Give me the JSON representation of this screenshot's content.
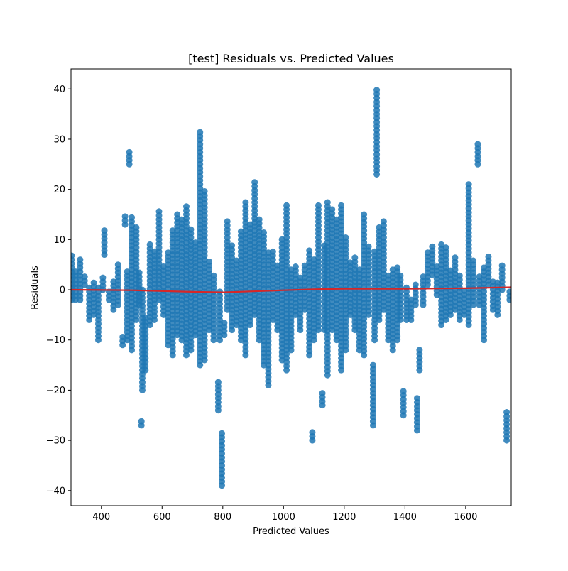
{
  "chart_data": {
    "type": "scatter",
    "title": "[test] Residuals vs. Predicted Values",
    "xlabel": "Predicted Values",
    "ylabel": "Residuals",
    "xlim": [
      300,
      1750
    ],
    "ylim": [
      -43,
      44
    ],
    "xticks": [
      400,
      600,
      800,
      1000,
      1200,
      1400,
      1600
    ],
    "xtick_labels": [
      "400",
      "600",
      "800",
      "1000",
      "1200",
      "1400",
      "1600"
    ],
    "yticks": [
      -40,
      -30,
      -20,
      -10,
      0,
      10,
      20,
      30,
      40
    ],
    "ytick_labels": [
      "−40",
      "−30",
      "−20",
      "−10",
      "0",
      "10",
      "20",
      "30",
      "40"
    ],
    "grid": false,
    "point_color": "#1f77b4",
    "line_color": "#d62728",
    "columns": [
      {
        "x": 302,
        "min": -2,
        "max": 7
      },
      {
        "x": 315,
        "min": -2,
        "max": 4
      },
      {
        "x": 330,
        "min": -2,
        "max": 6
      },
      {
        "x": 345,
        "min": 1,
        "max": 3
      },
      {
        "x": 360,
        "min": -6,
        "max": 1
      },
      {
        "x": 375,
        "min": -5,
        "max": 2
      },
      {
        "x": 390,
        "min": -10,
        "max": 1
      },
      {
        "x": 405,
        "min": 0,
        "max": 3
      },
      {
        "x": 410,
        "min": 7,
        "max": 12
      },
      {
        "x": 425,
        "min": -2,
        "max": 0
      },
      {
        "x": 440,
        "min": -4,
        "max": 2
      },
      {
        "x": 455,
        "min": -3,
        "max": 5
      },
      {
        "x": 470,
        "min": -11,
        "max": -9
      },
      {
        "x": 478,
        "min": 13,
        "max": 15
      },
      {
        "x": 485,
        "min": -10,
        "max": 4
      },
      {
        "x": 492,
        "min": 25,
        "max": 28
      },
      {
        "x": 500,
        "min": -12,
        "max": 15
      },
      {
        "x": 515,
        "min": -6,
        "max": 13
      },
      {
        "x": 525,
        "min": -3,
        "max": 4
      },
      {
        "x": 532,
        "min": -27,
        "max": -26
      },
      {
        "x": 535,
        "min": -20,
        "max": 0
      },
      {
        "x": 545,
        "min": -16,
        "max": -5
      },
      {
        "x": 560,
        "min": -7,
        "max": 9
      },
      {
        "x": 575,
        "min": -6,
        "max": 8
      },
      {
        "x": 590,
        "min": -2,
        "max": 16
      },
      {
        "x": 605,
        "min": -5,
        "max": 5
      },
      {
        "x": 620,
        "min": -11,
        "max": 8
      },
      {
        "x": 635,
        "min": -13,
        "max": 12
      },
      {
        "x": 650,
        "min": -9,
        "max": 15
      },
      {
        "x": 665,
        "min": -10,
        "max": 14
      },
      {
        "x": 680,
        "min": -13,
        "max": 17
      },
      {
        "x": 695,
        "min": -12,
        "max": 12
      },
      {
        "x": 710,
        "min": -9,
        "max": 10
      },
      {
        "x": 725,
        "min": -15,
        "max": 32
      },
      {
        "x": 740,
        "min": -14,
        "max": 20
      },
      {
        "x": 755,
        "min": -8,
        "max": 6
      },
      {
        "x": 770,
        "min": -10,
        "max": 3
      },
      {
        "x": 785,
        "min": -24,
        "max": -18
      },
      {
        "x": 790,
        "min": -10,
        "max": 0
      },
      {
        "x": 797,
        "min": -39,
        "max": -28
      },
      {
        "x": 805,
        "min": -9,
        "max": -6
      },
      {
        "x": 815,
        "min": -4,
        "max": 14
      },
      {
        "x": 830,
        "min": -8,
        "max": 9
      },
      {
        "x": 845,
        "min": -7,
        "max": 6
      },
      {
        "x": 860,
        "min": -10,
        "max": 12
      },
      {
        "x": 875,
        "min": -13,
        "max": 18
      },
      {
        "x": 890,
        "min": -7,
        "max": 13
      },
      {
        "x": 905,
        "min": -5,
        "max": 22
      },
      {
        "x": 920,
        "min": -10,
        "max": 14
      },
      {
        "x": 935,
        "min": -15,
        "max": 12
      },
      {
        "x": 950,
        "min": -19,
        "max": 8
      },
      {
        "x": 965,
        "min": -6,
        "max": 8
      },
      {
        "x": 980,
        "min": -8,
        "max": 5
      },
      {
        "x": 995,
        "min": -14,
        "max": 10
      },
      {
        "x": 1010,
        "min": -16,
        "max": 17
      },
      {
        "x": 1025,
        "min": -12,
        "max": 4
      },
      {
        "x": 1040,
        "min": -5,
        "max": 5
      },
      {
        "x": 1055,
        "min": -8,
        "max": 3
      },
      {
        "x": 1070,
        "min": -4,
        "max": 5
      },
      {
        "x": 1085,
        "min": -13,
        "max": 8
      },
      {
        "x": 1095,
        "min": -30,
        "max": -28
      },
      {
        "x": 1100,
        "min": -10,
        "max": 6
      },
      {
        "x": 1115,
        "min": -8,
        "max": 17
      },
      {
        "x": 1128,
        "min": -23,
        "max": -20
      },
      {
        "x": 1135,
        "min": -8,
        "max": 9
      },
      {
        "x": 1145,
        "min": -17,
        "max": 18
      },
      {
        "x": 1160,
        "min": -8,
        "max": 16
      },
      {
        "x": 1175,
        "min": -10,
        "max": 14
      },
      {
        "x": 1190,
        "min": -16,
        "max": 17
      },
      {
        "x": 1205,
        "min": -12,
        "max": 11
      },
      {
        "x": 1220,
        "min": -5,
        "max": 6
      },
      {
        "x": 1235,
        "min": -8,
        "max": 7
      },
      {
        "x": 1250,
        "min": -12,
        "max": 4
      },
      {
        "x": 1265,
        "min": -13,
        "max": 15
      },
      {
        "x": 1280,
        "min": -5,
        "max": 9
      },
      {
        "x": 1295,
        "min": -27,
        "max": -15
      },
      {
        "x": 1300,
        "min": -10,
        "max": 8
      },
      {
        "x": 1307,
        "min": 23,
        "max": 40
      },
      {
        "x": 1315,
        "min": -6,
        "max": 13
      },
      {
        "x": 1330,
        "min": -4,
        "max": 14
      },
      {
        "x": 1345,
        "min": -10,
        "max": 3
      },
      {
        "x": 1360,
        "min": -12,
        "max": 4
      },
      {
        "x": 1375,
        "min": -10,
        "max": 5
      },
      {
        "x": 1385,
        "min": -6,
        "max": 3
      },
      {
        "x": 1395,
        "min": -25,
        "max": -20
      },
      {
        "x": 1405,
        "min": -6,
        "max": 1
      },
      {
        "x": 1420,
        "min": -6,
        "max": -2
      },
      {
        "x": 1435,
        "min": -3,
        "max": 1
      },
      {
        "x": 1440,
        "min": -28,
        "max": -21
      },
      {
        "x": 1448,
        "min": -16,
        "max": -12
      },
      {
        "x": 1460,
        "min": -3,
        "max": 3
      },
      {
        "x": 1475,
        "min": 1,
        "max": 8
      },
      {
        "x": 1490,
        "min": 3,
        "max": 9
      },
      {
        "x": 1505,
        "min": -1,
        "max": 5
      },
      {
        "x": 1520,
        "min": -7,
        "max": 9
      },
      {
        "x": 1535,
        "min": -6,
        "max": 9
      },
      {
        "x": 1550,
        "min": -5,
        "max": 4
      },
      {
        "x": 1565,
        "min": -4,
        "max": 7
      },
      {
        "x": 1580,
        "min": -6,
        "max": 3
      },
      {
        "x": 1595,
        "min": -5,
        "max": 0
      },
      {
        "x": 1610,
        "min": -7,
        "max": 21
      },
      {
        "x": 1625,
        "min": -3,
        "max": 6
      },
      {
        "x": 1640,
        "min": 25,
        "max": 29
      },
      {
        "x": 1645,
        "min": -3,
        "max": 3
      },
      {
        "x": 1660,
        "min": -10,
        "max": 5
      },
      {
        "x": 1675,
        "min": 1,
        "max": 7
      },
      {
        "x": 1690,
        "min": -4,
        "max": 2
      },
      {
        "x": 1705,
        "min": -5,
        "max": 2
      },
      {
        "x": 1720,
        "min": 0,
        "max": 5
      },
      {
        "x": 1735,
        "min": -30,
        "max": -24
      },
      {
        "x": 1745,
        "min": -2,
        "max": 0
      }
    ],
    "trend_line": [
      {
        "x": 300,
        "y": 0.0
      },
      {
        "x": 500,
        "y": -0.1
      },
      {
        "x": 700,
        "y": -0.4
      },
      {
        "x": 800,
        "y": -0.5
      },
      {
        "x": 900,
        "y": -0.3
      },
      {
        "x": 1000,
        "y": -0.1
      },
      {
        "x": 1100,
        "y": 0.1
      },
      {
        "x": 1200,
        "y": 0.2
      },
      {
        "x": 1400,
        "y": 0.2
      },
      {
        "x": 1600,
        "y": 0.3
      },
      {
        "x": 1750,
        "y": 0.5
      }
    ]
  }
}
